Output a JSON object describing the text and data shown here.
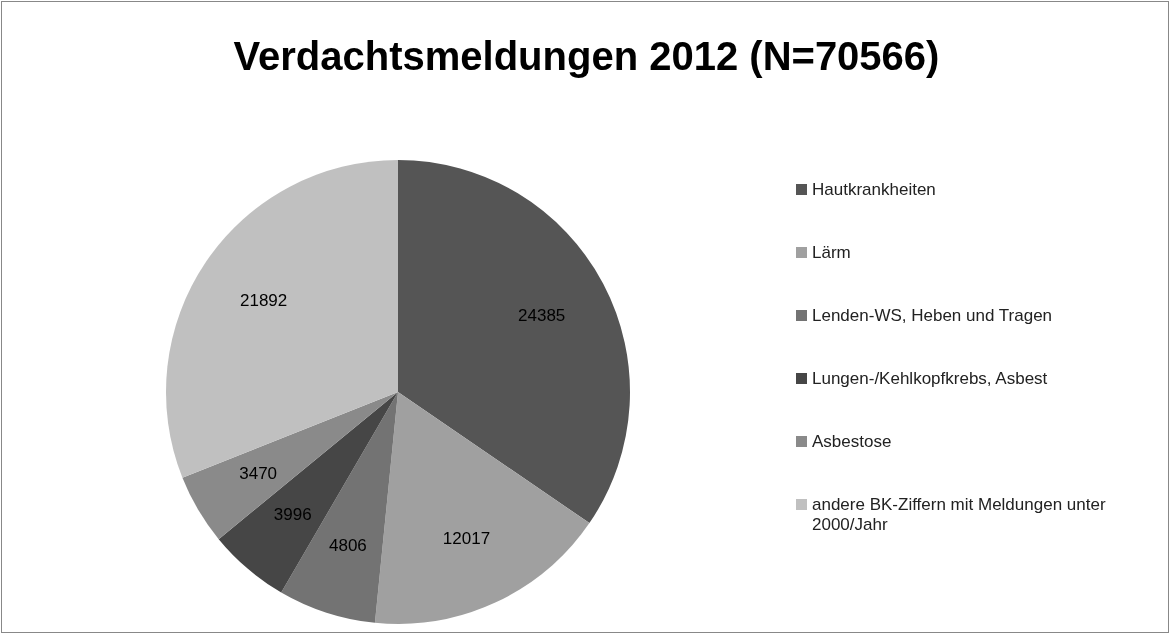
{
  "chart_data": {
    "type": "pie",
    "title": "Verdachtsmeldungen 2012 (N=70566)",
    "categories": [
      "Hautkrankheiten",
      "Lärm",
      "Lenden-WS, Heben und Tragen",
      "Lungen-/Kehlkopfkrebs, Asbest",
      "Asbestose",
      "andere BK-Ziffern mit Meldungen unter 2000/Jahr"
    ],
    "values": [
      24385,
      12017,
      4806,
      3996,
      3470,
      21892
    ],
    "colors": [
      "#555555",
      "#a0a0a0",
      "#737373",
      "#464646",
      "#8a8a8a",
      "#c0c0c0"
    ],
    "data_labels": true,
    "legend": "right"
  }
}
